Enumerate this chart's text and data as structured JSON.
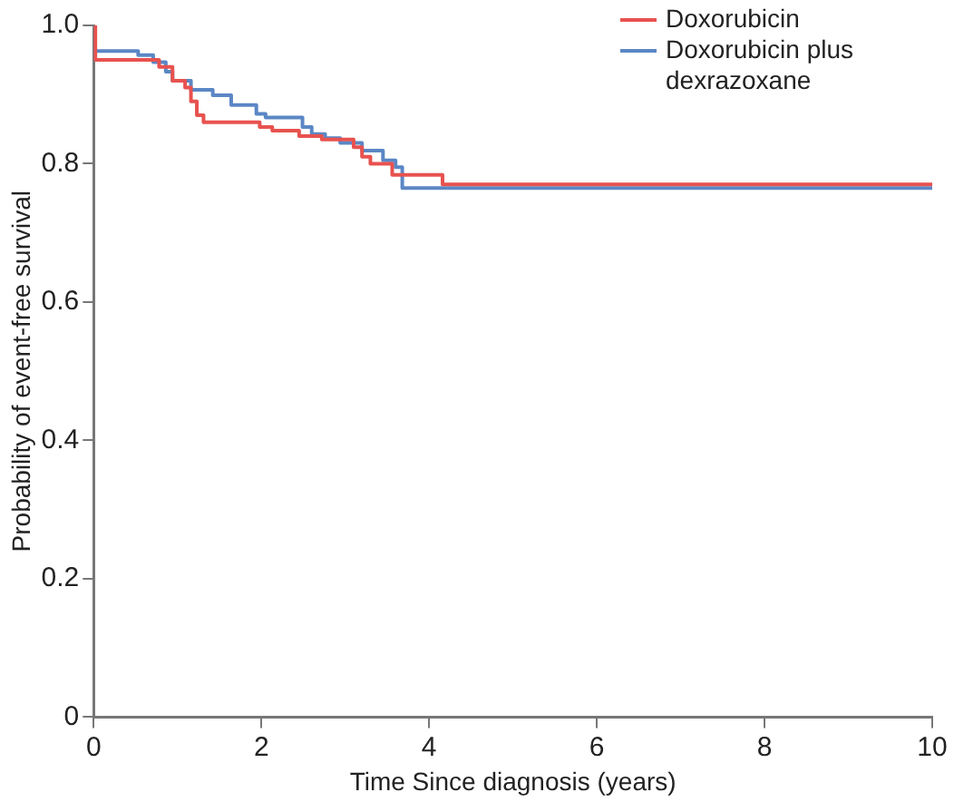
{
  "chart_data": {
    "type": "step",
    "xlabel": "Time Since diagnosis (years)",
    "ylabel": "Probability of event-free survival",
    "xlim": [
      0,
      10
    ],
    "xticks": [
      0,
      2,
      4,
      6,
      8,
      10
    ],
    "ylim": [
      0,
      1
    ],
    "yticks": [
      0,
      0.2,
      0.4,
      0.6,
      0.8,
      {
        "value": 1,
        "label": "1.0"
      }
    ],
    "grid": false,
    "legend": "top right",
    "series": [
      {
        "name": "Doxorubicin",
        "color": "#e8524f",
        "x": [
          0,
          0.02,
          0.78,
          0.94,
          1.09,
          1.16,
          1.23,
          1.31,
          1.98,
          2.13,
          2.45,
          2.72,
          3.1,
          3.2,
          3.3,
          3.56,
          4.16,
          10
        ],
        "values": [
          1.0,
          0.95,
          0.94,
          0.92,
          0.91,
          0.89,
          0.87,
          0.86,
          0.853,
          0.848,
          0.84,
          0.835,
          0.824,
          0.81,
          0.8,
          0.784,
          0.77,
          0.77
        ]
      },
      {
        "name": "Doxorubicin plus dexrazoxane",
        "color": "#5b87c5",
        "x": [
          0,
          0.53,
          0.71,
          0.86,
          0.94,
          1.16,
          1.42,
          1.64,
          1.94,
          2.05,
          2.49,
          2.6,
          2.76,
          2.94,
          3.2,
          3.45,
          3.6,
          3.68,
          10
        ],
        "values": [
          0.963,
          0.957,
          0.947,
          0.933,
          0.92,
          0.907,
          0.899,
          0.885,
          0.872,
          0.867,
          0.853,
          0.843,
          0.837,
          0.83,
          0.819,
          0.805,
          0.795,
          0.765,
          0.765
        ]
      }
    ]
  }
}
